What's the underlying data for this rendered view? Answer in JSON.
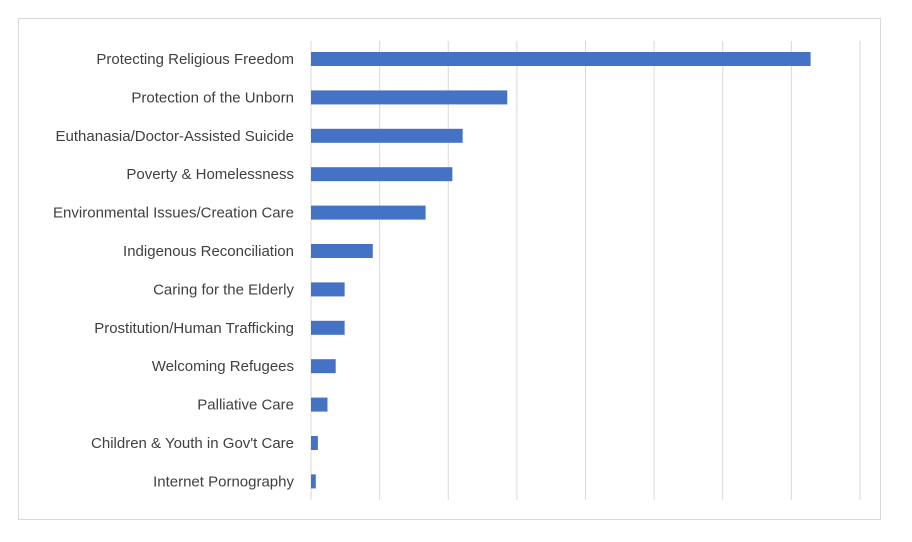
{
  "chart_data": {
    "type": "bar",
    "orientation": "horizontal",
    "categories": [
      "Protecting Religious Freedom",
      "Protection of the Unborn",
      "Euthanasia/Doctor-Assisted Suicide",
      "Poverty & Homelessness",
      "Environmental Issues/Creation Care",
      "Indigenous Reconciliation",
      "Caring for the Elderly",
      "Prostitution/Human Trafficking",
      "Welcoming Refugees",
      "Palliative Care",
      "Children & Youth in Gov't Care",
      "Internet Pornography"
    ],
    "values": [
      72.8,
      28.6,
      22.1,
      20.6,
      16.7,
      9.0,
      4.9,
      4.9,
      3.6,
      2.4,
      1.0,
      0.7
    ],
    "xlim": [
      0,
      80
    ],
    "grid": true,
    "gridline_count": 9,
    "bar_color": "#4472c4",
    "grid_color": "#d9d9d9",
    "border_color": "#d9d9d9",
    "label_color": "#404040"
  }
}
